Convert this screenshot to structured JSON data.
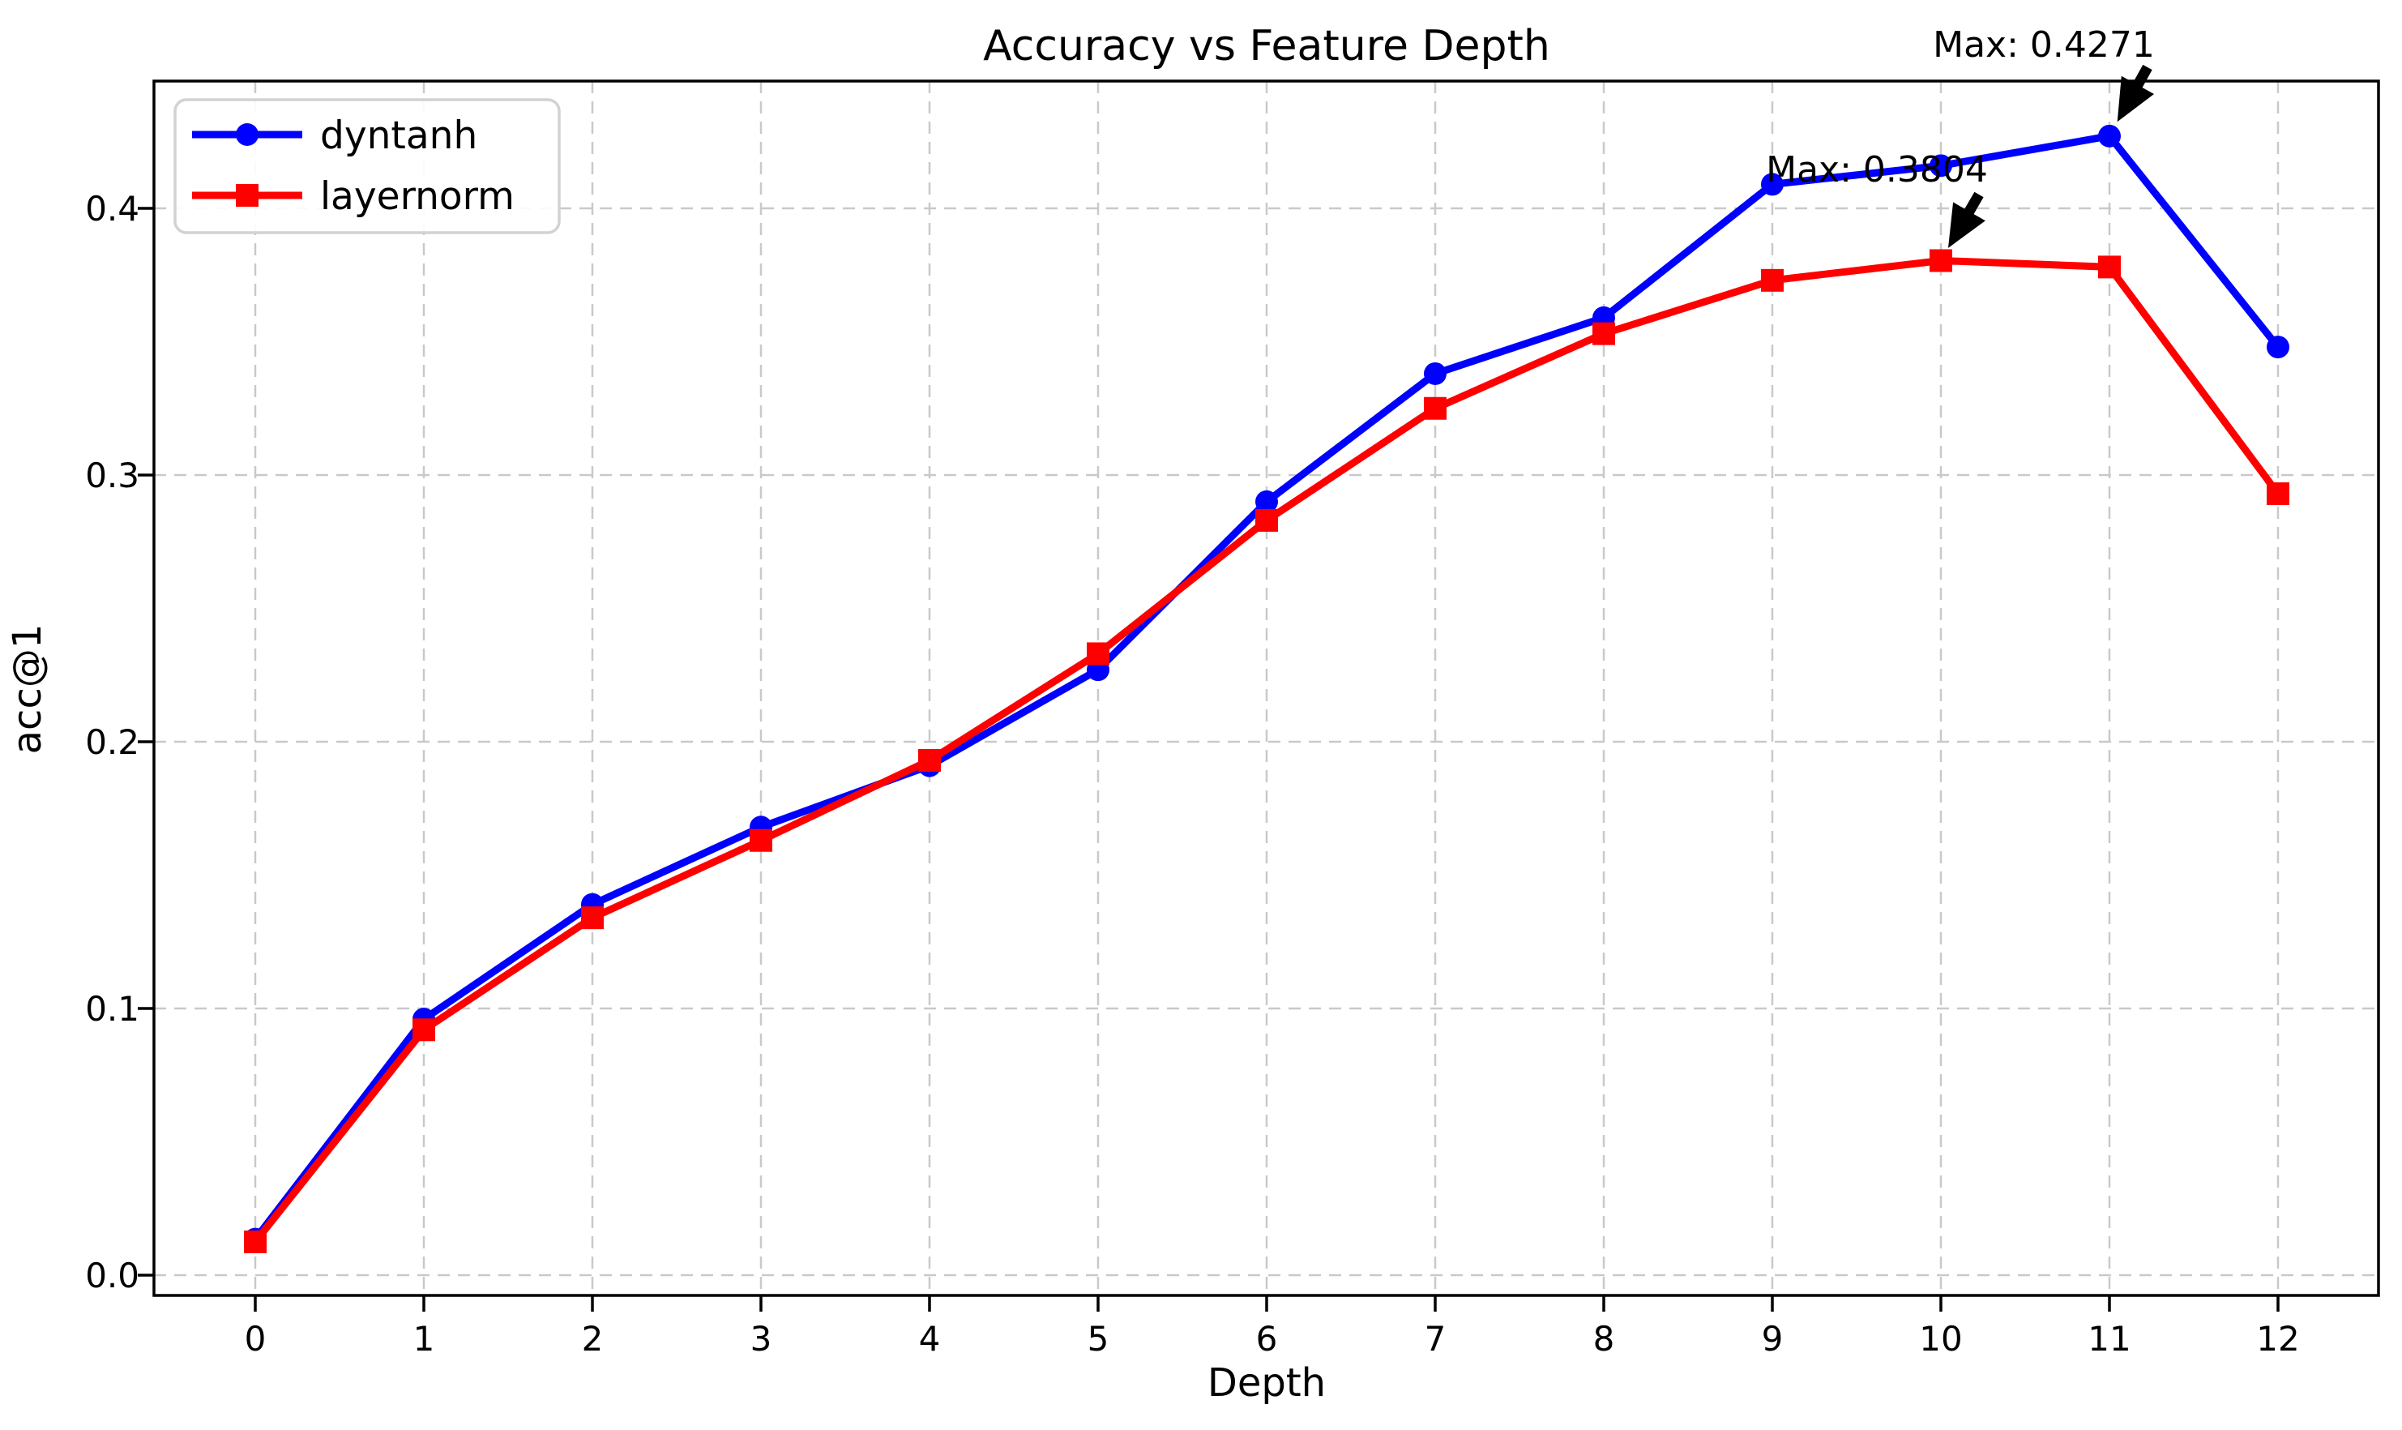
{
  "figure": {
    "title": "Accuracy vs Feature Depth",
    "xlabel": "Depth",
    "ylabel": "acc@1"
  },
  "chart_data": {
    "type": "line",
    "title": "Accuracy vs Feature Depth",
    "xlabel": "Depth",
    "ylabel": "acc@1",
    "x": [
      0,
      1,
      2,
      3,
      4,
      5,
      6,
      7,
      8,
      9,
      10,
      11,
      12
    ],
    "series": [
      {
        "name": "dyntanh",
        "color": "#0000ff",
        "marker": "circle",
        "values": [
          0.0135,
          0.096,
          0.139,
          0.168,
          0.191,
          0.227,
          0.29,
          0.338,
          0.359,
          0.409,
          0.416,
          0.4271,
          0.348
        ]
      },
      {
        "name": "layernorm",
        "color": "#ff0000",
        "marker": "square",
        "values": [
          0.0125,
          0.092,
          0.134,
          0.163,
          0.193,
          0.233,
          0.283,
          0.325,
          0.353,
          0.373,
          0.3804,
          0.378,
          0.293
        ]
      }
    ],
    "xticks": [
      "0",
      "1",
      "2",
      "3",
      "4",
      "5",
      "6",
      "7",
      "8",
      "9",
      "10",
      "11",
      "12"
    ],
    "yticks": [
      "0.0",
      "0.1",
      "0.2",
      "0.3",
      "0.4"
    ],
    "ytick_values": [
      0.0,
      0.1,
      0.2,
      0.3,
      0.4
    ],
    "xlim": [
      -0.6,
      12.6
    ],
    "ylim": [
      -0.008,
      0.448
    ],
    "grid": true,
    "grid_style": "dashed",
    "legend_position": "upper left",
    "annotations": [
      {
        "text": "Max: 0.4271",
        "series": "dyntanh",
        "x": 11,
        "y": 0.4271
      },
      {
        "text": "Max: 0.3804",
        "series": "layernorm",
        "x": 10,
        "y": 0.3804
      }
    ],
    "colors": {
      "dyntanh": "#0000ff",
      "layernorm": "#ff0000",
      "grid": "#c9c9c9",
      "spine": "#000000",
      "text": "#000000",
      "legend_border": "#d2d2d2",
      "annotation_arrow": "#000000",
      "background": "#ffffff"
    }
  }
}
